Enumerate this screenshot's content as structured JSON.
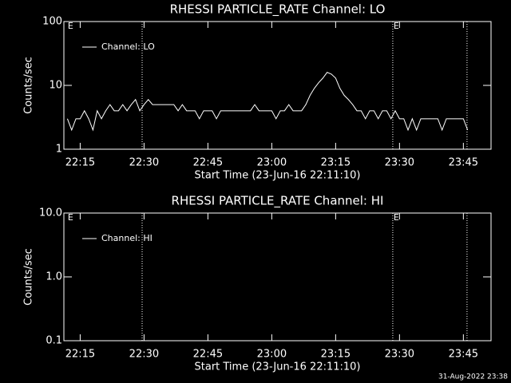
{
  "chart_data": [
    {
      "type": "line",
      "title": "RHESSI PARTICLE_RATE Channel: LO",
      "xlabel": "Start Time (23-Jun-16 22:11:10)",
      "ylabel": "Counts/sec",
      "log_scale": true,
      "ylim": [
        1,
        100
      ],
      "yticks": [
        1,
        10,
        100
      ],
      "xlim": [
        1331.17,
        1431.5
      ],
      "xticks": [
        {
          "value": 1335,
          "label": "22:15"
        },
        {
          "value": 1350,
          "label": "22:30"
        },
        {
          "value": 1365,
          "label": "22:45"
        },
        {
          "value": 1380,
          "label": "23:00"
        },
        {
          "value": 1395,
          "label": "23:15"
        },
        {
          "value": 1410,
          "label": "23:30"
        },
        {
          "value": 1425,
          "label": "23:45"
        }
      ],
      "vlines": [
        1349.55,
        1408.42,
        1425.86
      ],
      "annotations": [
        {
          "text": "E",
          "x": 1331.9
        },
        {
          "text": "E",
          "x": 1408.42
        }
      ],
      "x": [
        1332,
        1333,
        1334,
        1335,
        1336,
        1337,
        1338,
        1339,
        1340,
        1341,
        1342,
        1343,
        1344,
        1345,
        1346,
        1347,
        1348,
        1349,
        1350,
        1351,
        1352,
        1353,
        1354,
        1355,
        1356,
        1357,
        1358,
        1359,
        1360,
        1361,
        1362,
        1363,
        1364,
        1365,
        1366,
        1367,
        1368,
        1369,
        1370,
        1371,
        1372,
        1373,
        1374,
        1375,
        1376,
        1377,
        1378,
        1379,
        1380,
        1381,
        1382,
        1383,
        1384,
        1385,
        1386,
        1387,
        1388,
        1389,
        1390,
        1391,
        1392,
        1393,
        1394,
        1395,
        1396,
        1397,
        1398,
        1399,
        1400,
        1401,
        1402,
        1403,
        1404,
        1405,
        1406,
        1407,
        1408,
        1409,
        1410,
        1411,
        1412,
        1413,
        1414,
        1415,
        1416,
        1417,
        1418,
        1419,
        1420,
        1421,
        1422,
        1423,
        1424,
        1425,
        1426
      ],
      "series": [
        {
          "name": "Channel: LO",
          "color": "#ffffff",
          "values": [
            3,
            2,
            3,
            3,
            4,
            3,
            2,
            4,
            3,
            4,
            5,
            4,
            4,
            5,
            4,
            5,
            6,
            4,
            5,
            6,
            5,
            5,
            5,
            5,
            5,
            5,
            4,
            5,
            4,
            4,
            4,
            3,
            4,
            4,
            4,
            3,
            4,
            4,
            4,
            4,
            4,
            4,
            4,
            4,
            5,
            4,
            4,
            4,
            4,
            3,
            4,
            4,
            5,
            4,
            4,
            4,
            5,
            7,
            9,
            11,
            13,
            16,
            15,
            13,
            9,
            7,
            6,
            5,
            4,
            4,
            3,
            4,
            4,
            3,
            4,
            4,
            3,
            4,
            3,
            3,
            2,
            3,
            2,
            3,
            3,
            3,
            3,
            3,
            2,
            3,
            3,
            3,
            3,
            3,
            2
          ]
        }
      ]
    },
    {
      "type": "line",
      "title": "RHESSI PARTICLE_RATE Channel: HI",
      "xlabel": "Start Time (23-Jun-16 22:11:10)",
      "ylabel": "Counts/sec",
      "log_scale": true,
      "ylim": [
        0.1,
        10
      ],
      "yticks": [
        0.1,
        {
          "value": 1,
          "label": "1.0"
        },
        {
          "value": 10,
          "label": "10.0"
        }
      ],
      "xlim": [
        1331.17,
        1431.5
      ],
      "xticks": [
        {
          "value": 1335,
          "label": "22:15"
        },
        {
          "value": 1350,
          "label": "22:30"
        },
        {
          "value": 1365,
          "label": "22:45"
        },
        {
          "value": 1380,
          "label": "23:00"
        },
        {
          "value": 1395,
          "label": "23:15"
        },
        {
          "value": 1410,
          "label": "23:30"
        },
        {
          "value": 1425,
          "label": "23:45"
        }
      ],
      "vlines": [
        1349.55,
        1408.42,
        1425.86
      ],
      "annotations": [
        {
          "text": "E",
          "x": 1331.9
        },
        {
          "text": "E",
          "x": 1408.42
        }
      ],
      "x": [],
      "series": [
        {
          "name": "Channel: HI",
          "color": "#ffffff",
          "values": []
        }
      ]
    }
  ],
  "footer": "31-Aug-2022 23:38"
}
